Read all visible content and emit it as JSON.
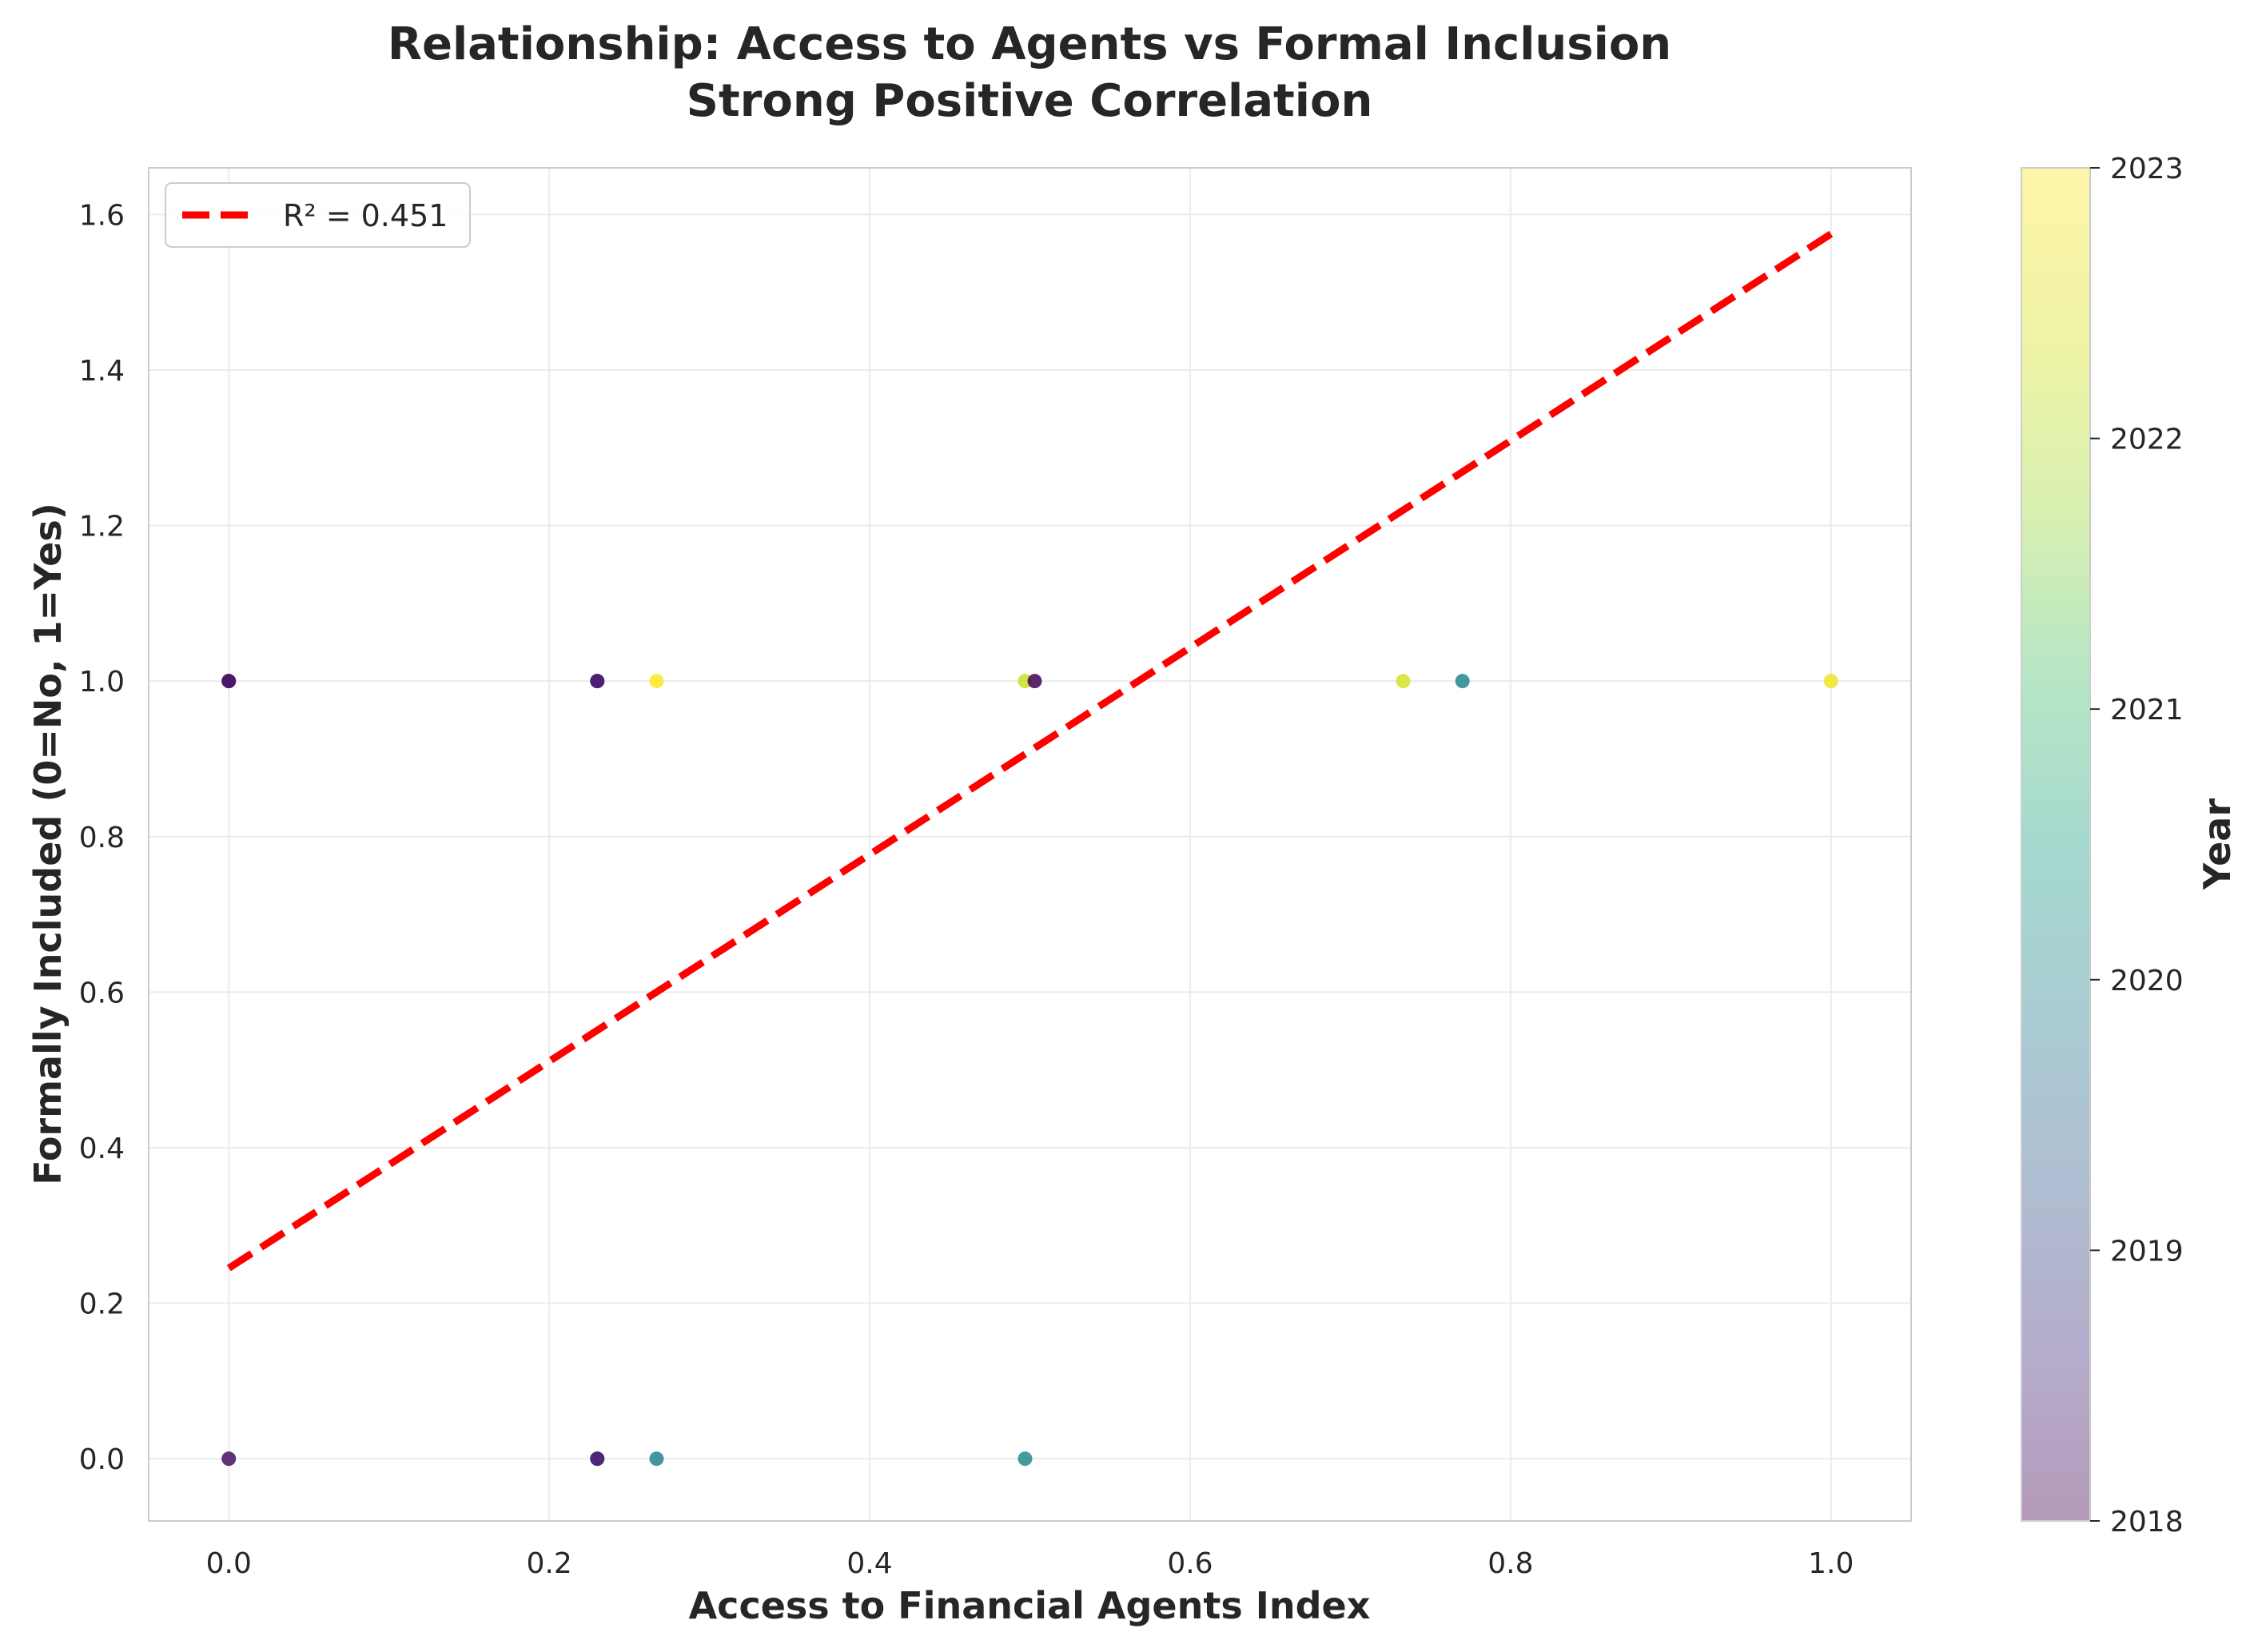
{
  "chart_data": {
    "type": "scatter",
    "title": "Relationship: Access to Agents vs Formal Inclusion",
    "subtitle": "Strong Positive Correlation",
    "xlabel": "Access to Financial Agents Index",
    "ylabel": "Formally Included (0=No, 1=Yes)",
    "xlim": [
      -0.05,
      1.05
    ],
    "ylim": [
      -0.08,
      1.66
    ],
    "xticks": [
      0.0,
      0.2,
      0.4,
      0.6,
      0.8,
      1.0
    ],
    "xtick_labels": [
      "0.0",
      "0.2",
      "0.4",
      "0.6",
      "0.8",
      "1.0"
    ],
    "yticks": [
      0.0,
      0.2,
      0.4,
      0.6,
      0.8,
      1.0,
      1.2,
      1.4,
      1.6
    ],
    "ytick_labels": [
      "0.0",
      "0.2",
      "0.4",
      "0.6",
      "0.8",
      "1.0",
      "1.2",
      "1.4",
      "1.6"
    ],
    "grid": true,
    "points": [
      {
        "x": 0.0,
        "y": 1,
        "year": 2018.1
      },
      {
        "x": 0.0,
        "y": 1,
        "year": 2018.3
      },
      {
        "x": 0.0,
        "y": 0,
        "year": 2018.2
      },
      {
        "x": 0.23,
        "y": 1,
        "year": 2018.2
      },
      {
        "x": 0.23,
        "y": 1,
        "year": 2018.4
      },
      {
        "x": 0.23,
        "y": 0,
        "year": 2018.3
      },
      {
        "x": 0.23,
        "y": 0,
        "year": 2018.5
      },
      {
        "x": 0.267,
        "y": 1,
        "year": 2023.0
      },
      {
        "x": 0.267,
        "y": 0,
        "year": 2020.2
      },
      {
        "x": 0.497,
        "y": 1,
        "year": 2022.6
      },
      {
        "x": 0.503,
        "y": 1,
        "year": 2018.0
      },
      {
        "x": 0.497,
        "y": 0,
        "year": 2020.4
      },
      {
        "x": 0.733,
        "y": 1,
        "year": 2022.7
      },
      {
        "x": 0.77,
        "y": 1,
        "year": 2020.3
      },
      {
        "x": 1.0,
        "y": 1,
        "year": 2022.9
      }
    ],
    "trendline": {
      "label": "R² = 0.451",
      "x": [
        0.0,
        1.0
      ],
      "y": [
        0.245,
        1.575
      ],
      "color": "#ff0000",
      "style": "dashed"
    },
    "colorbar": {
      "label": "Year",
      "min": 2018,
      "max": 2023,
      "ticks": [
        2018,
        2019,
        2020,
        2021,
        2022,
        2023
      ],
      "tick_labels": [
        "2018",
        "2019",
        "2020",
        "2021",
        "2022",
        "2023"
      ],
      "colormap": "viridis",
      "alpha": 0.4
    },
    "legend": {
      "position": "top-left",
      "entries": [
        "R² = 0.451"
      ]
    }
  }
}
